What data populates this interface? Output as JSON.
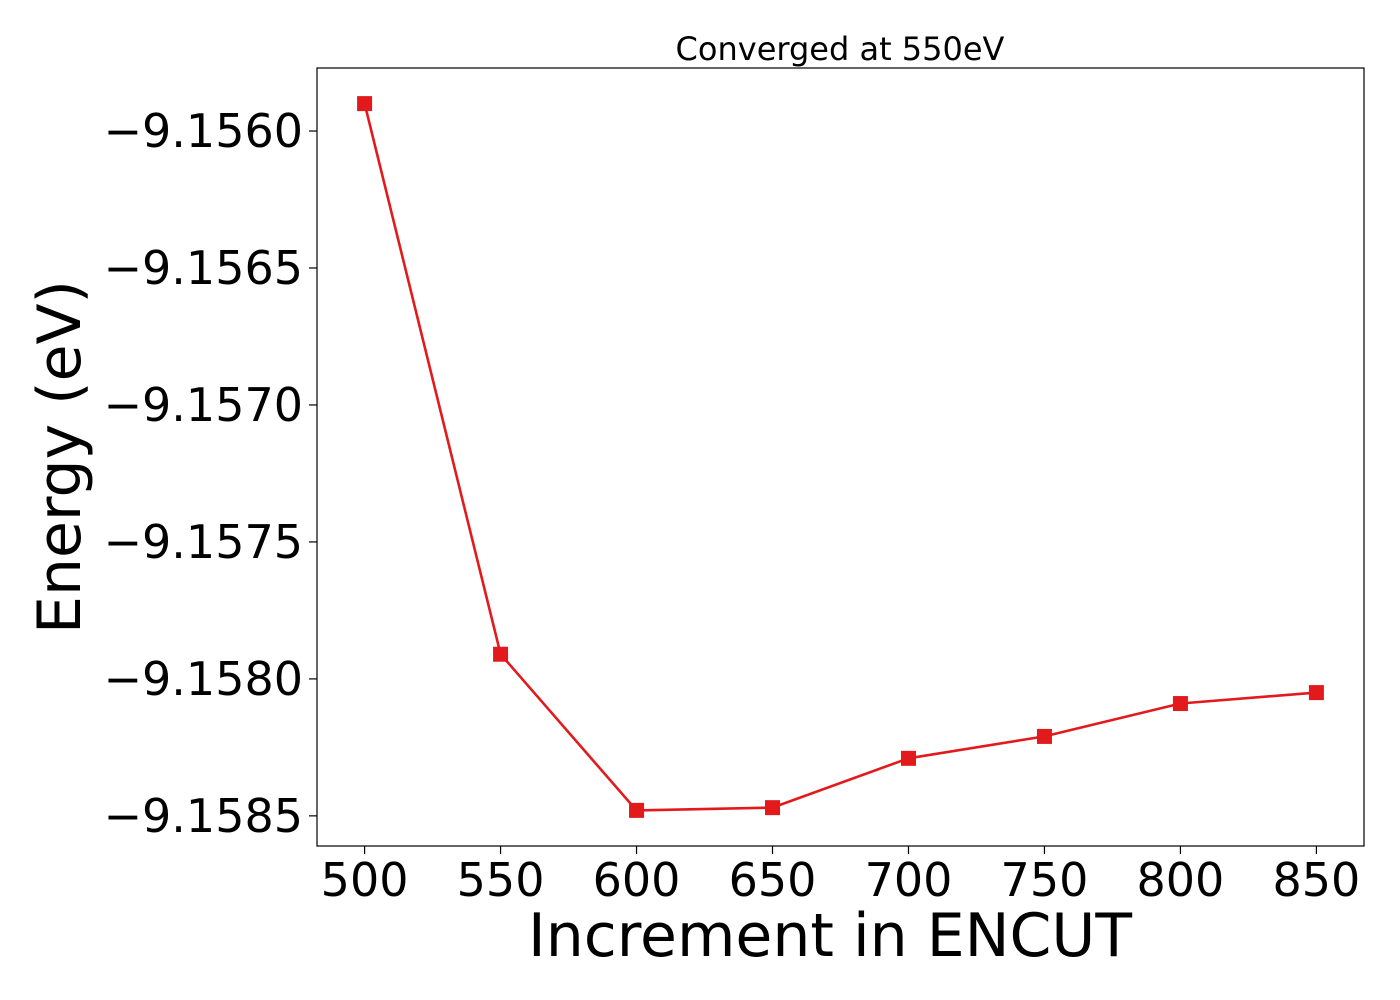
{
  "chart_data": {
    "type": "line",
    "title": "Converged at 550eV",
    "xlabel": "Increment in ENCUT",
    "ylabel": "Energy (eV)",
    "x": [
      500,
      550,
      600,
      650,
      700,
      750,
      800,
      850
    ],
    "series": [
      {
        "values": [
          -9.1559,
          -9.15791,
          -9.15848,
          -9.15847,
          -9.15829,
          -9.15821,
          -9.15809,
          -9.15805
        ],
        "color": "#e31a1c",
        "marker": "square"
      }
    ],
    "xlim": [
      482.5,
      867.5
    ],
    "ylim": [
      -9.15861,
      -9.15577
    ],
    "xticks": [
      500,
      550,
      600,
      650,
      700,
      750,
      800,
      850
    ],
    "xtick_labels": [
      "500",
      "550",
      "600",
      "650",
      "700",
      "750",
      "800",
      "850"
    ],
    "yticks": [
      -9.156,
      -9.1565,
      -9.157,
      -9.1575,
      -9.158,
      -9.1585
    ],
    "ytick_labels": [
      "−9.1560",
      "−9.1565",
      "−9.1570",
      "−9.1575",
      "−9.1580",
      "−9.1585"
    ],
    "grid": false,
    "legend": "none"
  }
}
